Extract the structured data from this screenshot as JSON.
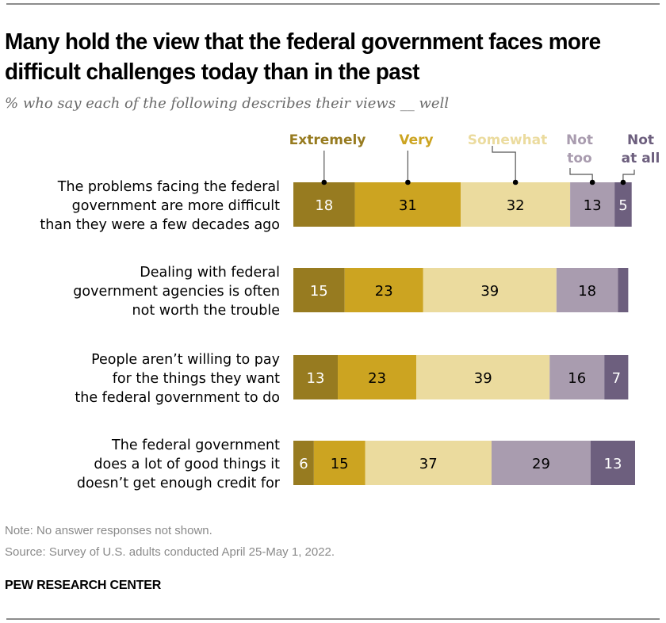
{
  "header": {
    "title": "Many hold the view that the federal government faces more difficult challenges today than in the past",
    "subtitle": "% who say each of the following describes their views __ well"
  },
  "footer": {
    "note": "Note: No answer responses not shown.",
    "source": "Source: Survey of U.S. adults conducted April 25-May 1, 2022.",
    "brand": "PEW RESEARCH CENTER"
  },
  "chart_data": {
    "type": "bar",
    "orientation": "horizontal",
    "stacked": true,
    "title": "Many hold the view that the federal government faces more difficult challenges today than in the past",
    "subtitle": "% who say each of the following describes their views __ well",
    "categories": [
      [
        "The problems facing the federal",
        "government are more difficult",
        "than they were a few decades ago"
      ],
      [
        "Dealing with federal",
        "government agencies is often",
        "not worth the trouble"
      ],
      [
        "People aren’t willing to pay",
        "for the things they want",
        "the federal government to do"
      ],
      [
        "The federal government",
        "does a lot of good things it",
        "doesn’t get enough credit for"
      ]
    ],
    "series": [
      {
        "name": "Extremely",
        "legend_lines": [
          "Extremely"
        ],
        "color": "#977b20",
        "label_color": "#ffffff",
        "values": [
          18,
          15,
          13,
          6
        ]
      },
      {
        "name": "Very",
        "legend_lines": [
          "Very"
        ],
        "color": "#cca421",
        "label_color": "#000000",
        "values": [
          31,
          23,
          23,
          15
        ]
      },
      {
        "name": "Somewhat",
        "legend_lines": [
          "Somewhat"
        ],
        "color": "#ebdb9e",
        "label_color": "#000000",
        "values": [
          32,
          39,
          39,
          37
        ]
      },
      {
        "name": "Not too",
        "legend_lines": [
          "Not",
          "too"
        ],
        "color": "#a99caf",
        "label_color": "#000000",
        "values": [
          13,
          18,
          16,
          29
        ]
      },
      {
        "name": "Not at all",
        "legend_lines": [
          "Not",
          "at all"
        ],
        "color": "#6d5f7e",
        "label_color": "#ffffff",
        "values": [
          5,
          3,
          7,
          13
        ]
      }
    ],
    "value_labels": [
      [
        "18",
        "31",
        "32",
        "13",
        "5"
      ],
      [
        "15",
        "23",
        "39",
        "18",
        ""
      ],
      [
        "13",
        "23",
        "39",
        "16",
        "7"
      ],
      [
        "6",
        "15",
        "37",
        "29",
        "13"
      ]
    ],
    "legend_text_colors": [
      "#977b20",
      "#cca421",
      "#ebdb9e",
      "#a99caf",
      "#6d5f7e"
    ],
    "legend_placement": "top, above first bar with leader lines",
    "xlim": [
      0,
      100
    ],
    "grid": false,
    "xlabel": "",
    "ylabel": ""
  }
}
